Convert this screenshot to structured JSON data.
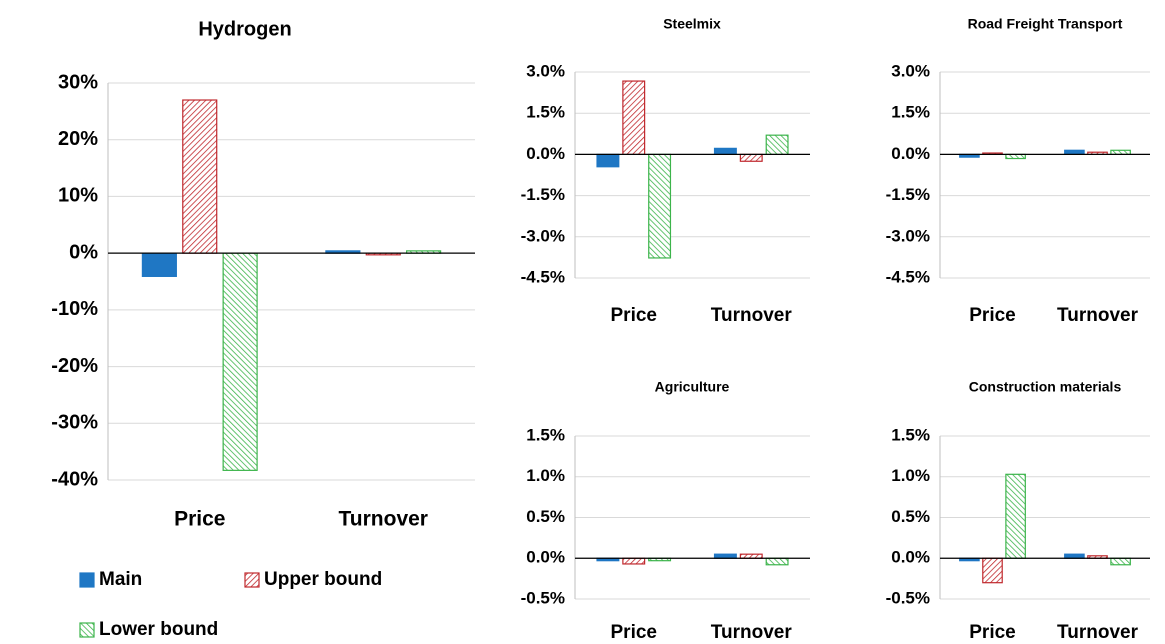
{
  "chart_data": [
    {
      "type": "bar",
      "title": "Hydrogen",
      "categories": [
        "Price",
        "Turnover"
      ],
      "series": [
        {
          "name": "Main",
          "color": "#1f77c4",
          "values": [
            -4.1,
            0.4
          ]
        },
        {
          "name": "Upper bound",
          "color": "#c0282d",
          "values": [
            27,
            -0.3
          ]
        },
        {
          "name": "Lower bound",
          "color": "#3cb44b",
          "values": [
            -38.3,
            0.4
          ]
        }
      ],
      "ylim": [
        -40,
        30
      ],
      "yticks": [
        {
          "value": -40,
          "label": "-40%"
        },
        {
          "value": -30,
          "label": "-30%"
        },
        {
          "value": -20,
          "label": "-20%"
        },
        {
          "value": -10,
          "label": "-10%"
        },
        {
          "value": 0,
          "label": "0%"
        },
        {
          "value": 10,
          "label": "10%"
        },
        {
          "value": 20,
          "label": "20%"
        },
        {
          "value": 30,
          "label": "30%"
        }
      ],
      "grid": true
    },
    {
      "type": "bar",
      "title": "Steelmix",
      "categories": [
        "Price",
        "Turnover"
      ],
      "series": [
        {
          "color": "#1f77c4",
          "values": [
            -0.45,
            0.22
          ]
        },
        {
          "color": "#c0282d",
          "values": [
            2.67,
            -0.25
          ]
        },
        {
          "color": "#3cb44b",
          "values": [
            -3.77,
            0.7
          ]
        }
      ],
      "ylim": [
        -4.5,
        3.0
      ],
      "yticks": [
        {
          "value": -4.5,
          "label": "-4.5%"
        },
        {
          "value": -3,
          "label": "-3.0%"
        },
        {
          "value": -1.5,
          "label": "-1.5%"
        },
        {
          "value": 0,
          "label": "0.0%"
        },
        {
          "value": 1.5,
          "label": "1.5%"
        },
        {
          "value": 3,
          "label": "3.0%"
        }
      ],
      "grid": true
    },
    {
      "type": "bar",
      "title": "Road Freight Transport",
      "categories": [
        "Price",
        "Turnover"
      ],
      "series": [
        {
          "color": "#1f77c4",
          "values": [
            -0.1,
            0.15
          ]
        },
        {
          "color": "#c0282d",
          "values": [
            0.05,
            0.08
          ]
        },
        {
          "color": "#3cb44b",
          "values": [
            -0.15,
            0.15
          ]
        }
      ],
      "ylim": [
        -4.5,
        3.0
      ],
      "yticks": [
        {
          "value": -4.5,
          "label": "-4.5%"
        },
        {
          "value": -3,
          "label": "-3.0%"
        },
        {
          "value": -1.5,
          "label": "-1.5%"
        },
        {
          "value": 0,
          "label": "0.0%"
        },
        {
          "value": 1.5,
          "label": "1.5%"
        },
        {
          "value": 3,
          "label": "3.0%"
        }
      ],
      "grid": true
    },
    {
      "type": "bar",
      "title": "Agriculture",
      "categories": [
        "Price",
        "Turnover"
      ],
      "series": [
        {
          "color": "#1f77c4",
          "values": [
            -0.03,
            0.05
          ]
        },
        {
          "color": "#c0282d",
          "values": [
            -0.07,
            0.05
          ]
        },
        {
          "color": "#3cb44b",
          "values": [
            -0.03,
            -0.08
          ]
        }
      ],
      "ylim": [
        -0.5,
        1.5
      ],
      "yticks": [
        {
          "value": -0.5,
          "label": "-0.5%"
        },
        {
          "value": 0,
          "label": "0.0%"
        },
        {
          "value": 0.5,
          "label": "0.5%"
        },
        {
          "value": 1,
          "label": "1.0%"
        },
        {
          "value": 1.5,
          "label": "1.5%"
        }
      ],
      "grid": true
    },
    {
      "type": "bar",
      "title": "Construction  materials",
      "categories": [
        "Price",
        "Turnover"
      ],
      "series": [
        {
          "color": "#1f77c4",
          "values": [
            -0.03,
            0.05
          ]
        },
        {
          "color": "#c0282d",
          "values": [
            -0.3,
            0.03
          ]
        },
        {
          "color": "#3cb44b",
          "values": [
            1.03,
            -0.08
          ]
        }
      ],
      "ylim": [
        -0.5,
        1.5
      ],
      "yticks": [
        {
          "value": -0.5,
          "label": "-0.5%"
        },
        {
          "value": 0,
          "label": "0.0%"
        },
        {
          "value": 0.5,
          "label": "0.5%"
        },
        {
          "value": 1,
          "label": "1.0%"
        },
        {
          "value": 1.5,
          "label": "1.5%"
        }
      ],
      "grid": true
    }
  ]
}
